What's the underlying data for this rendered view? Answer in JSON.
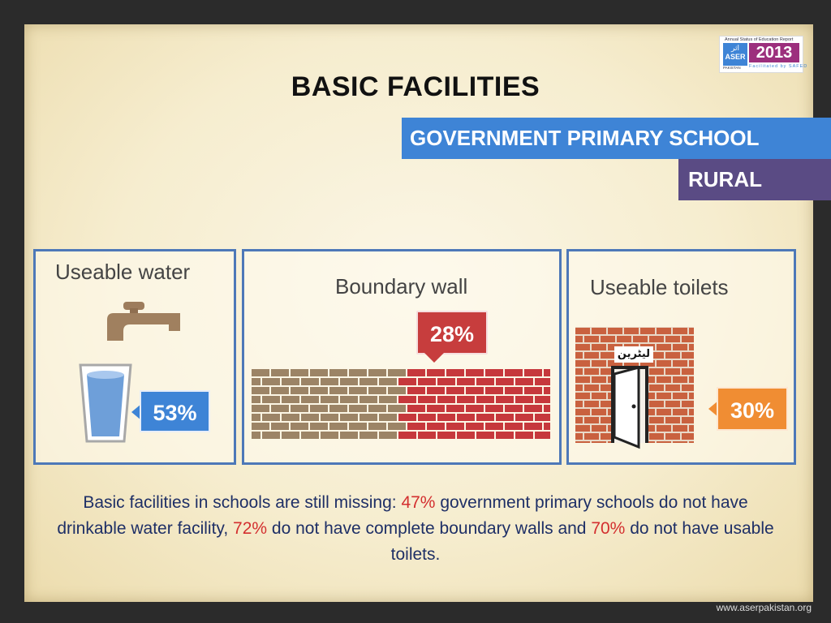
{
  "slide": {
    "title": "BASIC FACILITIES",
    "subtitle": "GOVERNMENT PRIMARY SCHOOL",
    "area": "RURAL"
  },
  "logo": {
    "tagline": "Annual Status of Education Report",
    "name": "ASER",
    "urdu": "اثر",
    "country": "PAKISTAN",
    "year": "2013",
    "facilitated": "Facilitated by SAFED"
  },
  "panels": [
    {
      "title": "Useable water",
      "value": "53%",
      "icon": "tap-and-glass-icon"
    },
    {
      "title": "Boundary wall",
      "value": "28%",
      "icon": "brick-wall-icon"
    },
    {
      "title": "Useable toilets",
      "value": "30%",
      "icon": "toilet-door-icon",
      "sign": "لیٹرین"
    }
  ],
  "caption": {
    "part1": "Basic facilities in schools are still missing: ",
    "v1": "47%",
    "part2": " government primary schools do not have drinkable water facility, ",
    "v2": "72%",
    "part3": " do not have complete boundary walls and ",
    "v3": "70%",
    "part4": " do not have usable toilets."
  },
  "footer": {
    "url": "www.aserpakistan.org"
  },
  "colors": {
    "blue": "#3e84d6",
    "purple": "#5a4b84",
    "red": "#c73d3d",
    "orange": "#f08d33",
    "highlight": "#d32f2f"
  }
}
